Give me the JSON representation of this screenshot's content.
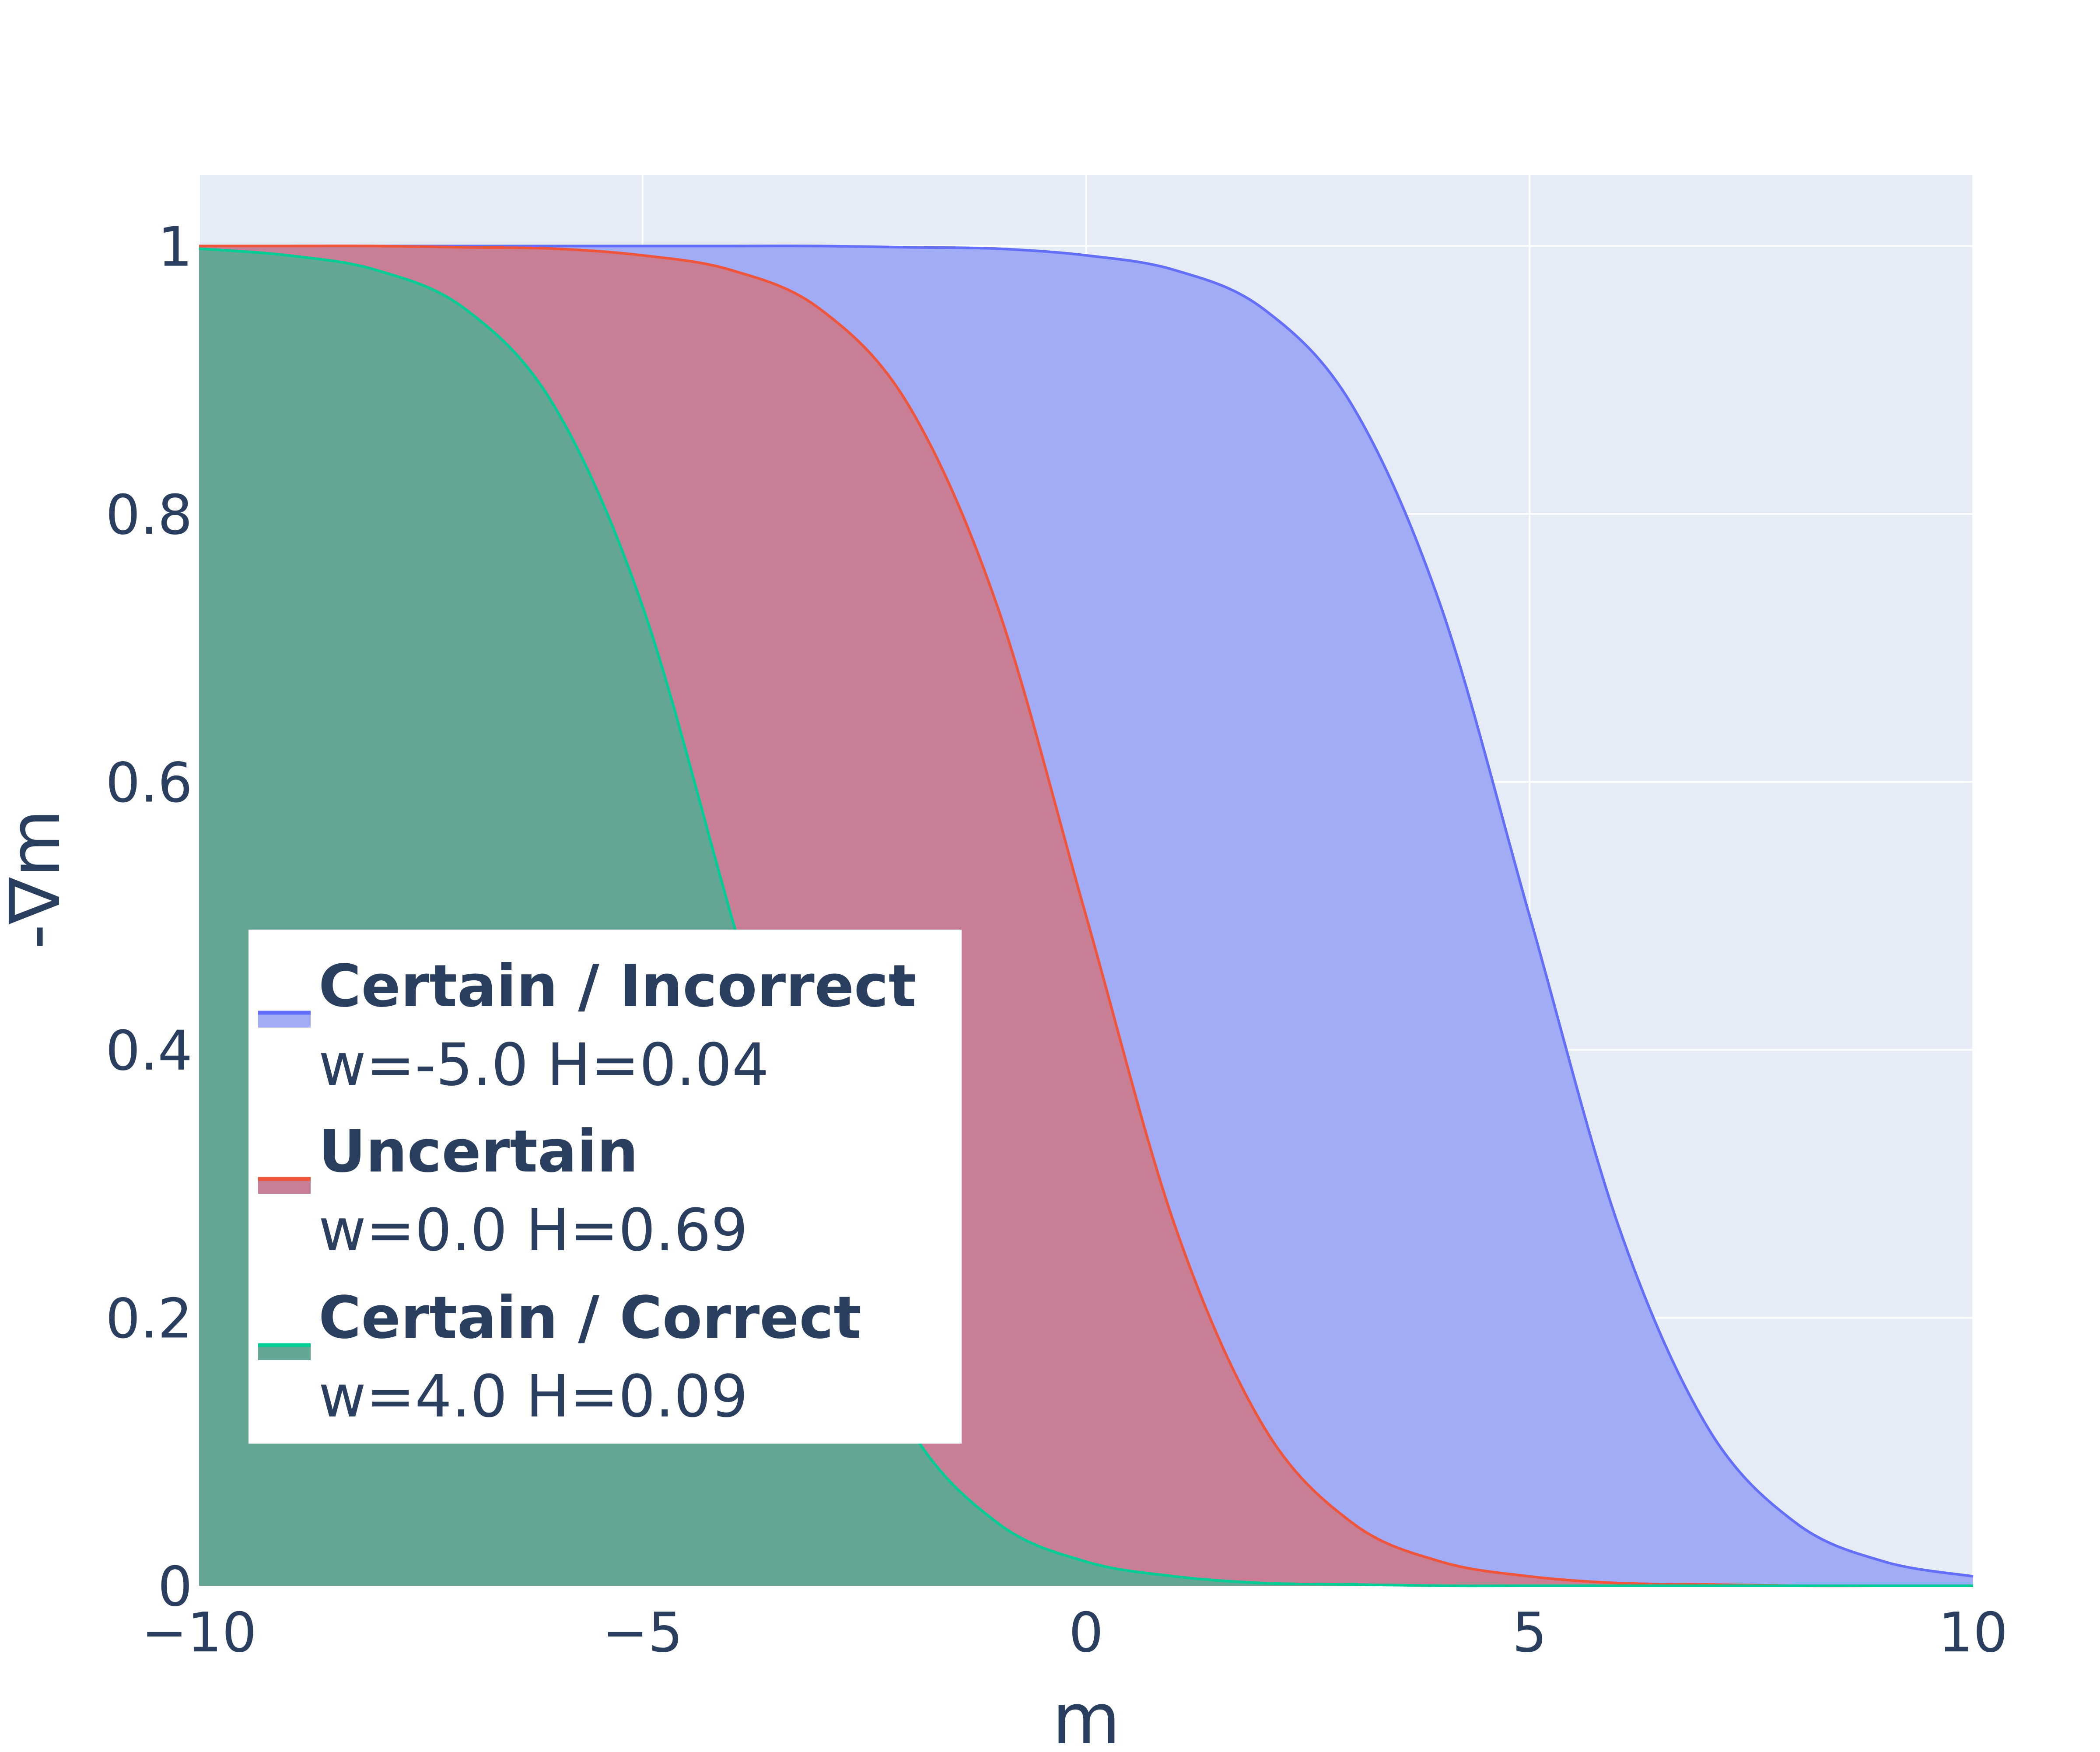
{
  "chart_data": {
    "type": "area",
    "xlabel": "m",
    "ylabel": "-∇m",
    "xlim": [
      -10,
      10
    ],
    "ylim": [
      0,
      1.053
    ],
    "grid": true,
    "legend_position": "middle-left",
    "x_ticks": [
      {
        "value": -10,
        "label": "−10"
      },
      {
        "value": -5,
        "label": "−5"
      },
      {
        "value": 0,
        "label": "0"
      },
      {
        "value": 5,
        "label": "5"
      },
      {
        "value": 10,
        "label": "10"
      }
    ],
    "y_ticks": [
      {
        "value": 0,
        "label": "0"
      },
      {
        "value": 0.2,
        "label": "0.2"
      },
      {
        "value": 0.4,
        "label": "0.4"
      },
      {
        "value": 0.6,
        "label": "0.6"
      },
      {
        "value": 0.8,
        "label": "0.8"
      },
      {
        "value": 1,
        "label": "1"
      }
    ],
    "x": [
      -10,
      -9,
      -8,
      -7,
      -6,
      -5,
      -4,
      -3,
      -2,
      -1,
      0,
      1,
      2,
      3,
      4,
      5,
      6,
      7,
      8,
      9,
      10
    ],
    "series": [
      {
        "name": "Certain / Incorrect",
        "subtitle": "w=-5.0 H=0.04",
        "line_color": "#636efa",
        "fill_color": "#a2acf6",
        "values": [
          1.0,
          1.0,
          1.0,
          1.0,
          1.0,
          1.0,
          1.0,
          1.0,
          0.999,
          0.998,
          0.993,
          0.982,
          0.953,
          0.881,
          0.731,
          0.5,
          0.269,
          0.119,
          0.047,
          0.018,
          0.007
        ]
      },
      {
        "name": "Uncertain",
        "subtitle": "w=0.0  H=0.69",
        "line_color": "#ef553b",
        "fill_color": "#c87f95",
        "values": [
          1.0,
          1.0,
          1.0,
          0.999,
          0.998,
          0.993,
          0.982,
          0.953,
          0.881,
          0.731,
          0.5,
          0.269,
          0.119,
          0.047,
          0.018,
          0.007,
          0.002,
          0.001,
          0.0,
          0.0,
          0.0
        ]
      },
      {
        "name": "Certain / Correct",
        "subtitle": "w=4.0  H=0.09",
        "line_color": "#00cc96",
        "fill_color": "#65a594",
        "values": [
          0.998,
          0.993,
          0.982,
          0.953,
          0.881,
          0.731,
          0.5,
          0.269,
          0.119,
          0.047,
          0.018,
          0.007,
          0.002,
          0.001,
          0.0,
          0.0,
          0.0,
          0.0,
          0.0,
          0.0,
          0.0
        ]
      }
    ]
  },
  "colors": {
    "plot_background": "#e5ecf6",
    "grid": "#ffffff",
    "text": "#2a3f5f"
  }
}
